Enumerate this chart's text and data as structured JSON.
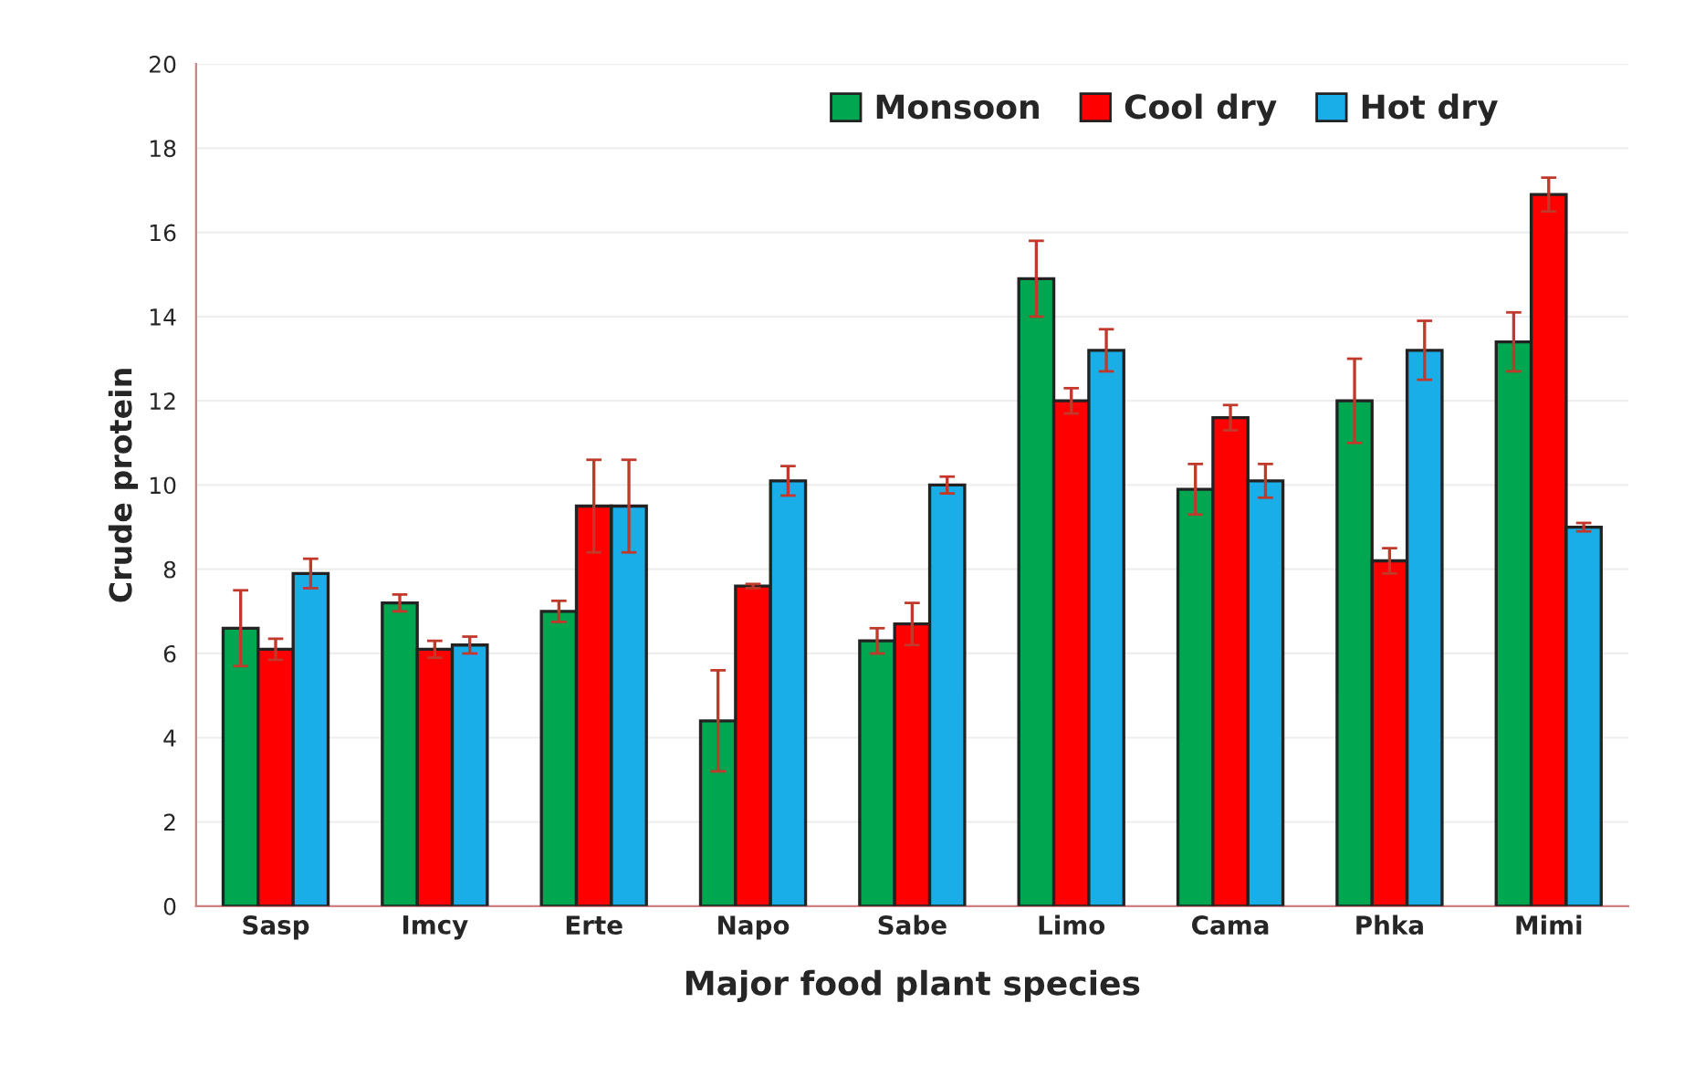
{
  "chart_data": {
    "type": "bar",
    "xlabel": "Major food plant species",
    "ylabel": "Crude protein",
    "categories": [
      "Sasp",
      "Imcy",
      "Erte",
      "Napo",
      "Sabe",
      "Limo",
      "Cama",
      "Phka",
      "Mimi"
    ],
    "series": [
      {
        "name": "Monsoon",
        "color": "#00a650",
        "values": [
          6.6,
          7.2,
          7.0,
          4.4,
          6.3,
          14.9,
          9.9,
          12.0,
          13.4
        ],
        "errors": [
          0.9,
          0.2,
          0.25,
          1.2,
          0.3,
          0.9,
          0.6,
          1.0,
          0.7
        ]
      },
      {
        "name": "Cool dry",
        "color": "#ff0000",
        "values": [
          6.1,
          6.1,
          9.5,
          7.6,
          6.7,
          12.0,
          11.6,
          8.2,
          16.9
        ],
        "errors": [
          0.25,
          0.2,
          1.1,
          0.05,
          0.5,
          0.3,
          0.3,
          0.3,
          0.4
        ]
      },
      {
        "name": "Hot dry",
        "color": "#1aaee8",
        "values": [
          7.9,
          6.2,
          9.5,
          10.1,
          10.0,
          13.2,
          10.1,
          13.2,
          9.0
        ],
        "errors": [
          0.35,
          0.2,
          1.1,
          0.35,
          0.2,
          0.5,
          0.4,
          0.7,
          0.1
        ]
      }
    ],
    "ylim": [
      0,
      20
    ],
    "yticks": [
      0,
      2,
      4,
      6,
      8,
      10,
      12,
      14,
      16,
      18,
      20
    ],
    "grid": "y",
    "legend": "top right"
  }
}
